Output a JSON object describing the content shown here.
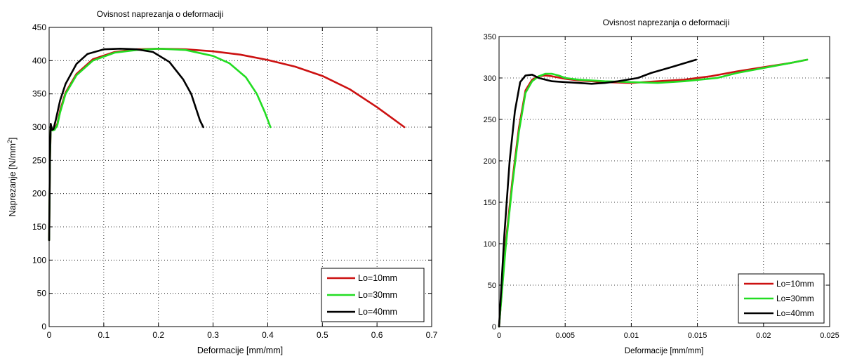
{
  "chart_data": [
    {
      "type": "line",
      "title": "Ovisnost naprezanja o deformaciji",
      "xlabel": "Deformacije [mm/mm]",
      "ylabel": "Naprezanje [N/mm",
      "ylabel_sup": "2",
      "ylabel_end": "]",
      "xlim": [
        0,
        0.7
      ],
      "ylim": [
        0,
        450
      ],
      "xticks": [
        0,
        0.1,
        0.2,
        0.3,
        0.4,
        0.5,
        0.6,
        0.7
      ],
      "xtick_labels": [
        "0",
        "0.1",
        "0.2",
        "0.3",
        "0.4",
        "0.5",
        "0.6",
        "0.7"
      ],
      "yticks": [
        0,
        50,
        100,
        150,
        200,
        250,
        300,
        350,
        400,
        450
      ],
      "ytick_labels": [
        "0",
        "50",
        "100",
        "150",
        "200",
        "250",
        "300",
        "350",
        "400",
        "450"
      ],
      "grid": true,
      "legend_position": "bottom-right",
      "series": [
        {
          "name": "Lo=10mm",
          "color": "#cc1111",
          "x": [
            0,
            0.0015,
            0.003,
            0.006,
            0.01,
            0.015,
            0.02,
            0.03,
            0.05,
            0.08,
            0.12,
            0.16,
            0.2,
            0.25,
            0.3,
            0.35,
            0.4,
            0.45,
            0.5,
            0.55,
            0.6,
            0.63,
            0.65
          ],
          "y": [
            130,
            250,
            300,
            295,
            297,
            305,
            325,
            352,
            380,
            402,
            413,
            417,
            418,
            417,
            414,
            409,
            401,
            391,
            377,
            357,
            330,
            312,
            300
          ]
        },
        {
          "name": "Lo=30mm",
          "color": "#22dd22",
          "x": [
            0,
            0.0015,
            0.003,
            0.006,
            0.01,
            0.015,
            0.02,
            0.03,
            0.05,
            0.08,
            0.12,
            0.16,
            0.2,
            0.25,
            0.3,
            0.33,
            0.36,
            0.38,
            0.395,
            0.405
          ],
          "y": [
            130,
            250,
            302,
            295,
            296,
            303,
            322,
            350,
            378,
            400,
            412,
            416,
            418,
            416,
            407,
            396,
            375,
            350,
            322,
            300
          ]
        },
        {
          "name": "Lo=40mm",
          "color": "#000000",
          "x": [
            0,
            0.0015,
            0.003,
            0.005,
            0.008,
            0.012,
            0.02,
            0.03,
            0.05,
            0.07,
            0.1,
            0.13,
            0.16,
            0.19,
            0.22,
            0.245,
            0.26,
            0.27,
            0.276,
            0.282
          ],
          "y": [
            130,
            260,
            305,
            296,
            297,
            310,
            340,
            365,
            395,
            410,
            417,
            418,
            417,
            413,
            398,
            372,
            350,
            325,
            310,
            300
          ]
        }
      ]
    },
    {
      "type": "line",
      "title": "Ovisnost naprezanja o deformaciji",
      "xlabel": "Deformacije [mm/mm]",
      "xlim": [
        0,
        0.025
      ],
      "ylim": [
        0,
        350
      ],
      "xticks": [
        0,
        0.005,
        0.01,
        0.015,
        0.02,
        0.025
      ],
      "xtick_labels": [
        "0",
        "0.005",
        "0.01",
        "0.015",
        "0.02",
        "0.025"
      ],
      "yticks": [
        0,
        50,
        100,
        150,
        200,
        250,
        300,
        350
      ],
      "ytick_labels": [
        "0",
        "50",
        "100",
        "150",
        "200",
        "250",
        "300",
        "350"
      ],
      "grid": true,
      "legend_position": "bottom-right",
      "series": [
        {
          "name": "Lo=10mm",
          "color": "#cc1111",
          "x": [
            0,
            0.0005,
            0.001,
            0.0015,
            0.002,
            0.0025,
            0.003,
            0.0035,
            0.004,
            0.005,
            0.006,
            0.008,
            0.01,
            0.012,
            0.014,
            0.016,
            0.018,
            0.02,
            0.022,
            0.0233
          ],
          "y": [
            0,
            100,
            175,
            240,
            285,
            298,
            302,
            303,
            302,
            299,
            297,
            295,
            294,
            296,
            298,
            302,
            308,
            313,
            318,
            322
          ]
        },
        {
          "name": "Lo=30mm",
          "color": "#22dd22",
          "x": [
            0,
            0.0005,
            0.001,
            0.0015,
            0.002,
            0.0025,
            0.003,
            0.0035,
            0.004,
            0.0045,
            0.005,
            0.006,
            0.008,
            0.01,
            0.012,
            0.014,
            0.0165,
            0.018,
            0.02,
            0.022,
            0.0233
          ],
          "y": [
            0,
            95,
            170,
            235,
            282,
            296,
            302,
            305,
            305,
            303,
            300,
            298,
            296,
            295,
            294,
            296,
            300,
            306,
            312,
            318,
            322
          ]
        },
        {
          "name": "Lo=40mm",
          "color": "#000000",
          "x": [
            0,
            0.0004,
            0.0008,
            0.0012,
            0.0016,
            0.002,
            0.0025,
            0.003,
            0.004,
            0.005,
            0.006,
            0.007,
            0.008,
            0.009,
            0.0105,
            0.0115,
            0.013,
            0.0149
          ],
          "y": [
            0,
            110,
            200,
            260,
            295,
            303,
            304,
            300,
            296,
            295,
            294,
            293,
            294,
            296,
            300,
            306,
            313,
            322
          ]
        }
      ]
    }
  ]
}
